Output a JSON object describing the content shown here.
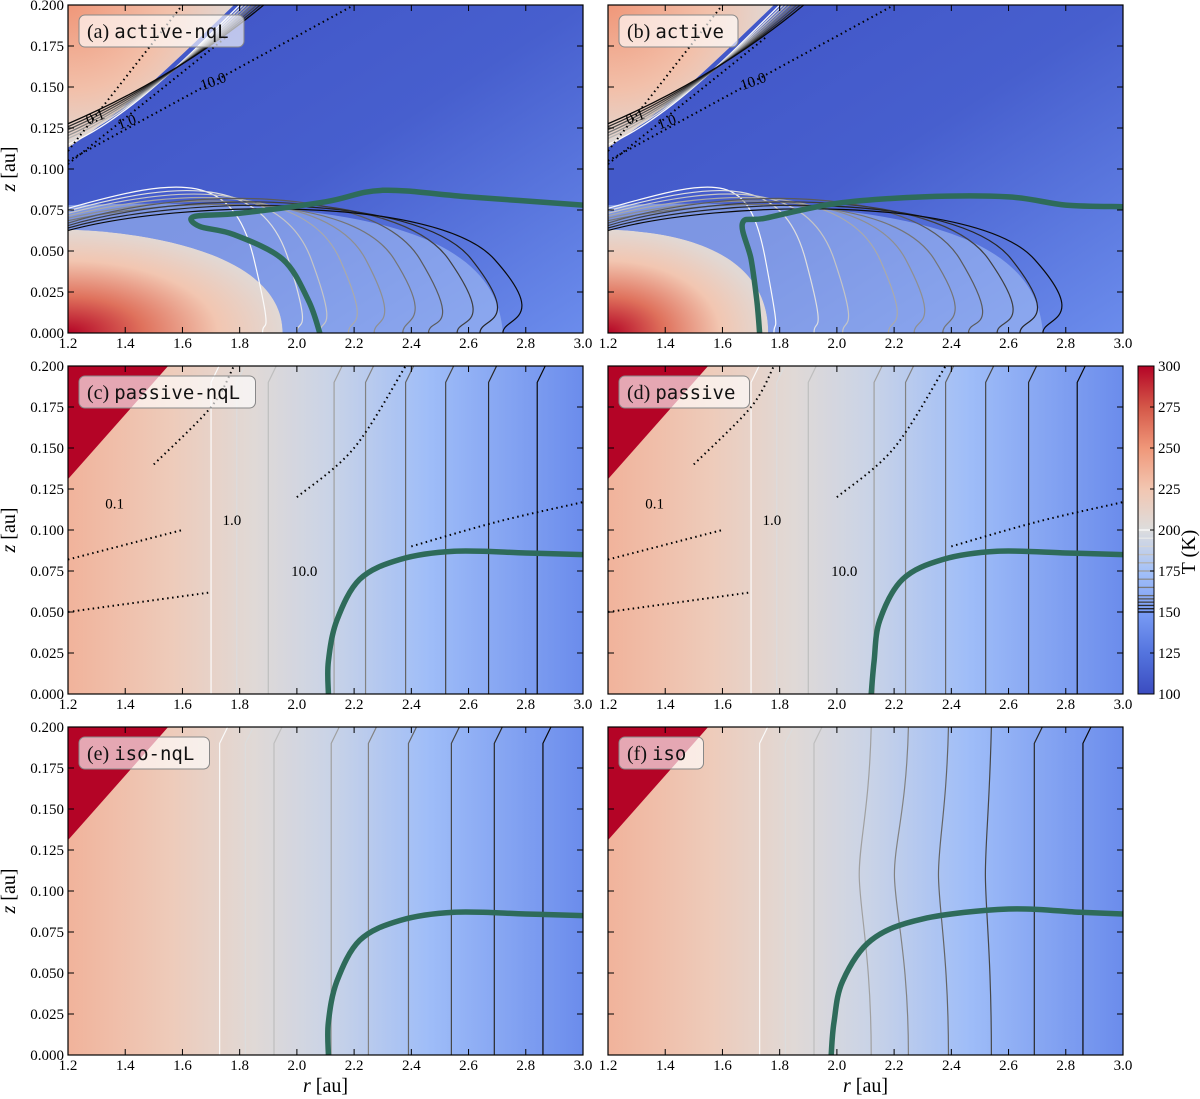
{
  "chart_data": {
    "type": "heatmap",
    "layout": "3 rows x 2 columns of 2D temperature maps with contours",
    "panels": [
      {
        "id": "a",
        "label_prefix": "(a)",
        "label_model": "active-nqL",
        "hot_wedge": false,
        "model": "active"
      },
      {
        "id": "b",
        "label_prefix": "(b)",
        "label_model": "active",
        "hot_wedge": false,
        "model": "active"
      },
      {
        "id": "c",
        "label_prefix": "(c)",
        "label_model": "passive-nqL",
        "hot_wedge": true,
        "model": "passive"
      },
      {
        "id": "d",
        "label_prefix": "(d)",
        "label_model": "passive",
        "hot_wedge": true,
        "model": "passive"
      },
      {
        "id": "e",
        "label_prefix": "(e)",
        "label_model": "iso-nqL",
        "hot_wedge": true,
        "model": "iso"
      },
      {
        "id": "f",
        "label_prefix": "(f)",
        "label_model": "iso",
        "hot_wedge": true,
        "model": "iso"
      }
    ],
    "x_axis": {
      "label_symbol": "r",
      "label_unit": "[au]",
      "range": [
        1.2,
        3.0
      ],
      "ticks": [
        "1.2",
        "1.4",
        "1.6",
        "1.8",
        "2.0",
        "2.2",
        "2.4",
        "2.6",
        "2.8",
        "3.0"
      ]
    },
    "y_axis": {
      "label_symbol": "z",
      "label_unit": "[au]",
      "range": [
        0.0,
        0.2
      ],
      "ticks": [
        "0.000",
        "0.025",
        "0.050",
        "0.075",
        "0.100",
        "0.125",
        "0.150",
        "0.175",
        "0.200"
      ]
    },
    "colorbar": {
      "label": "T (K)",
      "range": [
        100,
        300
      ],
      "ticks": [
        "100",
        "125",
        "150",
        "175",
        "200",
        "225",
        "250",
        "275",
        "300"
      ],
      "colormap": "coolwarm",
      "contour_levels": [
        150,
        152,
        154,
        156,
        158,
        160,
        165,
        170,
        175,
        180,
        185,
        190,
        195,
        200
      ]
    },
    "dotted_contour_labels": [
      "0.1",
      "1.0",
      "10.0"
    ],
    "active_isotherm_radii_at_midplane": [
      1.88,
      2.0,
      2.08,
      2.18,
      2.27,
      2.37,
      2.46,
      2.56,
      2.64,
      2.72
    ],
    "vertical_isotherm_radii": {
      "passive": [
        1.7,
        1.79,
        1.9,
        2.13,
        2.24,
        2.38,
        2.52,
        2.67,
        2.84
      ],
      "iso": [
        1.73,
        1.82,
        1.92,
        2.12,
        2.25,
        2.39,
        2.54,
        2.69,
        2.86
      ]
    },
    "snowline_thick_curve": {
      "a": [
        [
          2.08,
          0.0
        ],
        [
          2.04,
          0.02
        ],
        [
          1.95,
          0.045
        ],
        [
          1.78,
          0.06
        ],
        [
          1.66,
          0.065
        ],
        [
          1.64,
          0.071
        ],
        [
          1.8,
          0.073
        ],
        [
          2.1,
          0.08
        ],
        [
          2.3,
          0.087
        ],
        [
          2.6,
          0.083
        ],
        [
          3.0,
          0.078
        ]
      ],
      "b": [
        [
          1.73,
          0.0
        ],
        [
          1.72,
          0.02
        ],
        [
          1.7,
          0.045
        ],
        [
          1.67,
          0.067
        ],
        [
          1.75,
          0.07
        ],
        [
          2.0,
          0.079
        ],
        [
          2.3,
          0.083
        ],
        [
          2.6,
          0.083
        ],
        [
          2.8,
          0.078
        ],
        [
          3.0,
          0.077
        ]
      ],
      "c": [
        [
          2.11,
          0.0
        ],
        [
          2.11,
          0.02
        ],
        [
          2.14,
          0.045
        ],
        [
          2.22,
          0.07
        ],
        [
          2.36,
          0.082
        ],
        [
          2.55,
          0.087
        ],
        [
          2.8,
          0.086
        ],
        [
          3.0,
          0.085
        ]
      ],
      "d": [
        [
          2.12,
          0.0
        ],
        [
          2.13,
          0.02
        ],
        [
          2.15,
          0.045
        ],
        [
          2.23,
          0.07
        ],
        [
          2.37,
          0.082
        ],
        [
          2.56,
          0.087
        ],
        [
          2.8,
          0.086
        ],
        [
          3.0,
          0.085
        ]
      ],
      "e": [
        [
          2.11,
          0.0
        ],
        [
          2.11,
          0.02
        ],
        [
          2.14,
          0.045
        ],
        [
          2.22,
          0.07
        ],
        [
          2.36,
          0.082
        ],
        [
          2.55,
          0.087
        ],
        [
          2.8,
          0.086
        ],
        [
          3.0,
          0.085
        ]
      ],
      "f": [
        [
          1.98,
          0.0
        ],
        [
          1.99,
          0.02
        ],
        [
          2.02,
          0.045
        ],
        [
          2.12,
          0.07
        ],
        [
          2.3,
          0.083
        ],
        [
          2.6,
          0.089
        ],
        [
          2.85,
          0.087
        ],
        [
          3.0,
          0.086
        ]
      ]
    }
  }
}
